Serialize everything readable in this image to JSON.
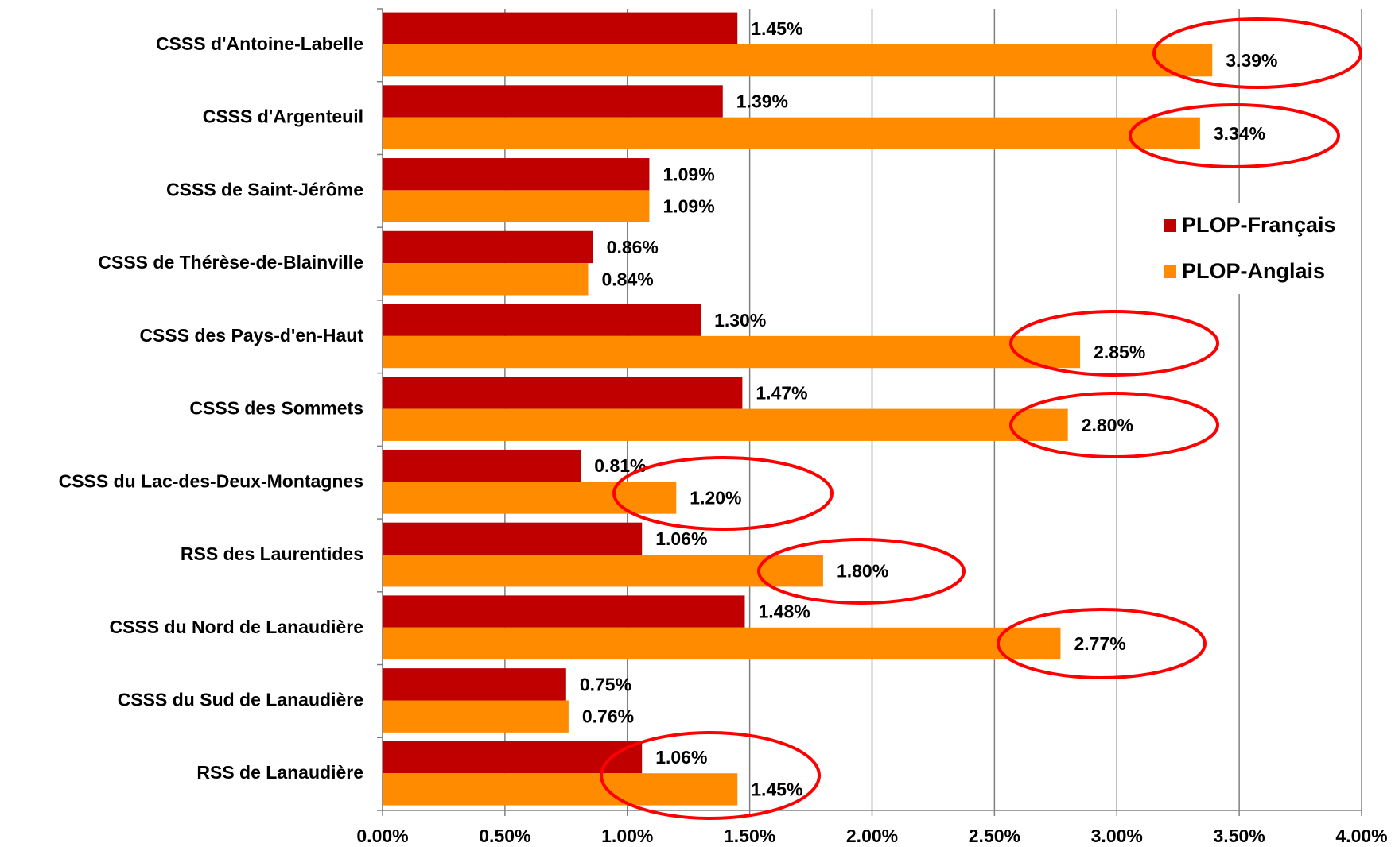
{
  "chart_data": {
    "type": "bar",
    "orientation": "horizontal",
    "categories": [
      "CSSS d'Antoine-Labelle",
      "CSSS d'Argenteuil",
      "CSSS de Saint-Jérôme",
      "CSSS de Thérèse-de-Blainville",
      "CSSS des Pays-d'en-Haut",
      "CSSS des Sommets",
      "CSSS du Lac-des-Deux-Montagnes",
      "RSS des Laurentides",
      "CSSS du Nord de Lanaudière",
      "CSSS du Sud de Lanaudière",
      "RSS de Lanaudière"
    ],
    "series": [
      {
        "name": "PLOP-Français",
        "color": "#c00000",
        "values": [
          1.45,
          1.39,
          1.09,
          0.86,
          1.3,
          1.47,
          0.81,
          1.06,
          1.48,
          0.75,
          1.06
        ],
        "value_labels": [
          "1.45%",
          "1.39%",
          "1.09%",
          "0.86%",
          "1.30%",
          "1.47%",
          "0.81%",
          "1.06%",
          "1.48%",
          "0.75%",
          "1.06%"
        ]
      },
      {
        "name": "PLOP-Anglais",
        "color": "#ff8c00",
        "values": [
          3.39,
          3.34,
          1.09,
          0.84,
          2.85,
          2.8,
          1.2,
          1.8,
          2.77,
          0.76,
          1.45
        ],
        "value_labels": [
          "3.39%",
          "3.34%",
          "1.09%",
          "0.84%",
          "2.85%",
          "2.80%",
          "1.20%",
          "1.80%",
          "2.77%",
          "0.76%",
          "1.45%"
        ]
      }
    ],
    "xlim": [
      0,
      4
    ],
    "xticks": [
      {
        "value": 0,
        "label": "0.00%"
      },
      {
        "value": 0.5,
        "label": "0.50%"
      },
      {
        "value": 1,
        "label": "1.00%"
      },
      {
        "value": 1.5,
        "label": "1.50%"
      },
      {
        "value": 2,
        "label": "2.00%"
      },
      {
        "value": 2.5,
        "label": "2.50%"
      },
      {
        "value": 3,
        "label": "3.00%"
      },
      {
        "value": 3.5,
        "label": "3.50%"
      },
      {
        "value": 4,
        "label": "4.00%"
      }
    ],
    "grid": true,
    "legend": "right"
  }
}
